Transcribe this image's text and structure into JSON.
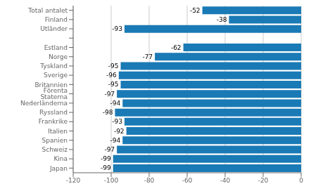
{
  "chart_data": {
    "type": "bar",
    "orientation": "horizontal",
    "categories": [
      "Japan",
      "Kina",
      "Schweiz",
      "Spanien",
      "Italien",
      "Frankrike",
      "Ryssland",
      "Nederländerna",
      "Förenta Staterna",
      "Britannien",
      "Sverige",
      "Tyskland",
      "Norge",
      "Estland",
      null,
      "Utländer",
      "Finland",
      "Total antalet"
    ],
    "values": [
      -99,
      -99,
      -97,
      -94,
      -92,
      -93,
      -98,
      -94,
      -97,
      -95,
      -96,
      -95,
      -77,
      -62,
      null,
      -93,
      -38,
      -52
    ],
    "color": "#1a7ab5",
    "xlim": [
      -120,
      0
    ],
    "xticks": [
      -120,
      -100,
      -80,
      -60,
      -40,
      -20,
      0
    ],
    "grid": true,
    "data_labels": true
  }
}
